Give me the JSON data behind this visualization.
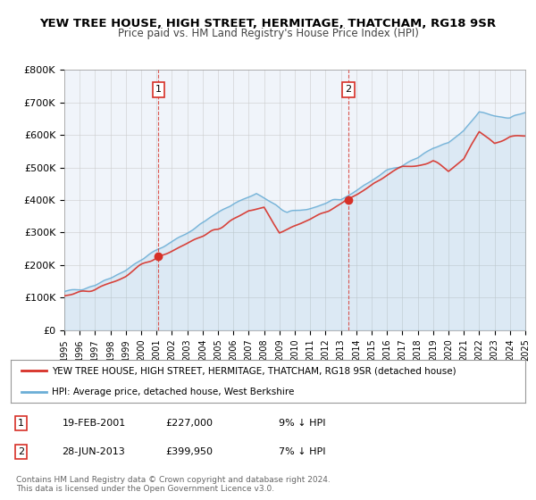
{
  "title": "YEW TREE HOUSE, HIGH STREET, HERMITAGE, THATCHAM, RG18 9SR",
  "subtitle": "Price paid vs. HM Land Registry's House Price Index (HPI)",
  "legend_line1": "YEW TREE HOUSE, HIGH STREET, HERMITAGE, THATCHAM, RG18 9SR (detached house)",
  "legend_line2": "HPI: Average price, detached house, West Berkshire",
  "marker1_date": "19-FEB-2001",
  "marker1_price": 227000,
  "marker1_hpi": "9% ↓ HPI",
  "marker1_year": 2001.13,
  "marker2_date": "28-JUN-2013",
  "marker2_price": 399950,
  "marker2_hpi": "7% ↓ HPI",
  "marker2_year": 2013.49,
  "footer1": "Contains HM Land Registry data © Crown copyright and database right 2024.",
  "footer2": "This data is licensed under the Open Government Licence v3.0.",
  "xmin": 1995,
  "xmax": 2025,
  "ymin": 0,
  "ymax": 800000,
  "yticks": [
    0,
    100000,
    200000,
    300000,
    400000,
    500000,
    600000,
    700000,
    800000
  ],
  "ytick_labels": [
    "£0",
    "£100K",
    "£200K",
    "£300K",
    "£400K",
    "£500K",
    "£600K",
    "£700K",
    "£800K"
  ],
  "hpi_color": "#6baed6",
  "price_color": "#d73027",
  "vline_color": "#d73027",
  "bg_color": "#f0f4fa",
  "plot_bg": "#ffffff",
  "grid_color": "#cccccc"
}
